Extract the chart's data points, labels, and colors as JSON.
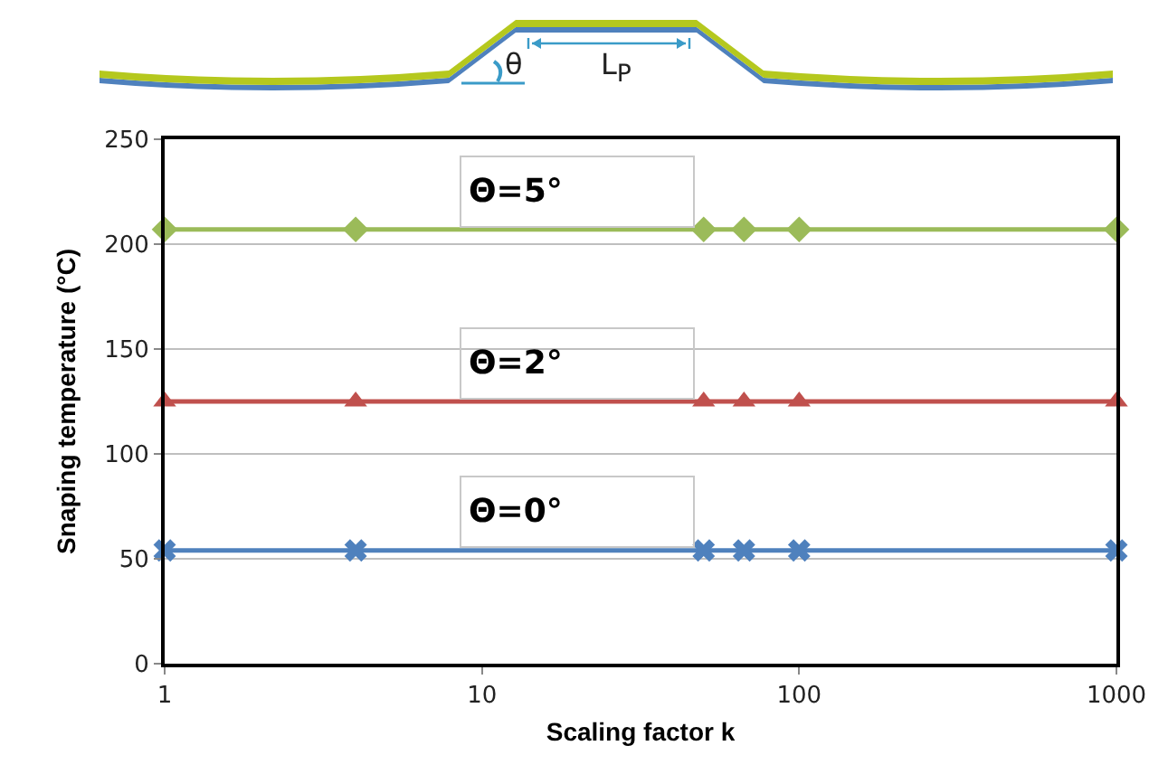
{
  "chart_data": {
    "type": "line",
    "xlabel": "Scaling factor k",
    "ylabel": "Snaping temperature (°C)",
    "log": "x",
    "grid": "y",
    "legend": false,
    "x": [
      1,
      4,
      50,
      67,
      100,
      1000
    ],
    "series": [
      {
        "name": "Θ=5°",
        "color": "#9bbb59",
        "marker": "diamond",
        "values": [
          207,
          207,
          207,
          207,
          207,
          207
        ]
      },
      {
        "name": "Θ=2°",
        "color": "#c0504d",
        "marker": "triangle",
        "values": [
          125,
          125,
          125,
          125,
          125,
          125
        ]
      },
      {
        "name": "Θ=0°",
        "color": "#4f81bd",
        "marker": "cross",
        "values": [
          54,
          54,
          54,
          54,
          54,
          54
        ]
      }
    ],
    "xlim": [
      1,
      1000
    ],
    "xticks": [
      1,
      10,
      100,
      1000
    ],
    "ylim": [
      0,
      250
    ],
    "yticks": [
      0,
      50,
      100,
      150,
      200,
      250
    ],
    "annotations": [
      "θ",
      "L$_{P}$"
    ]
  }
}
